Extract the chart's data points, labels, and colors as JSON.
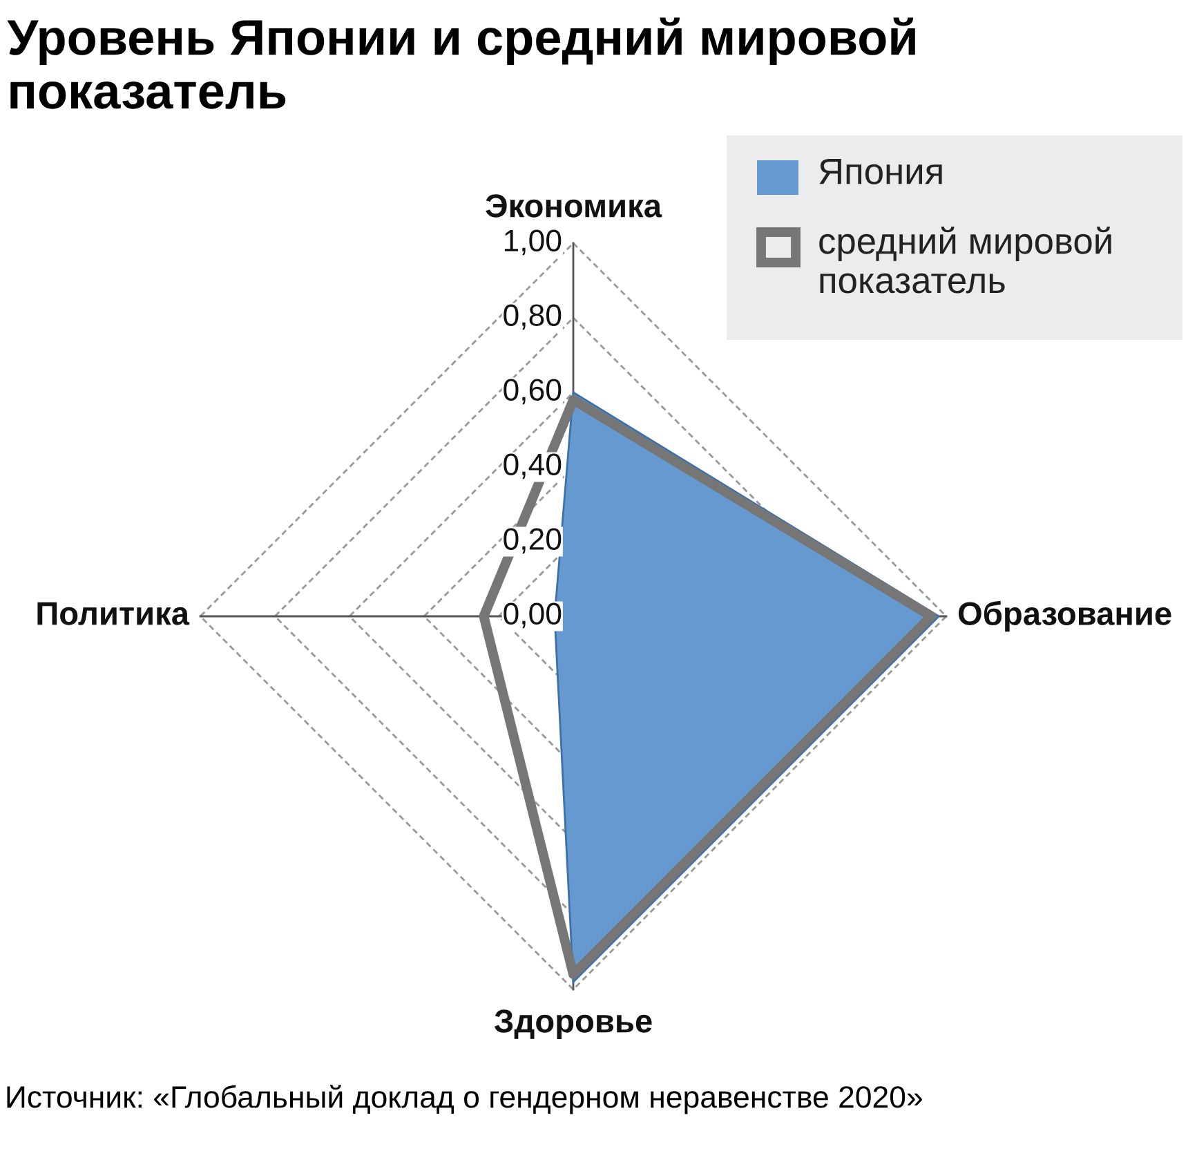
{
  "chart_data": {
    "type": "radar",
    "title": "Уровень Японии и средний мировой показатель",
    "categories": [
      "Экономика",
      "Образование",
      "Здоровье",
      "Политика"
    ],
    "series": [
      {
        "name": "Япония",
        "color": "#6699cf",
        "values": [
          0.6,
          0.98,
          0.98,
          0.05
        ]
      },
      {
        "name": "средний мировой показатель",
        "color": "#767676",
        "values": [
          0.58,
          0.96,
          0.96,
          0.24
        ]
      }
    ],
    "ylim": [
      0,
      1
    ],
    "yticks": [
      {
        "value": 0,
        "label": "0,00"
      },
      {
        "value": 0.2,
        "label": "0,20"
      },
      {
        "value": 0.4,
        "label": "0,40"
      },
      {
        "value": 0.6,
        "label": "0,60"
      },
      {
        "value": 0.8,
        "label": "0,80"
      },
      {
        "value": 1,
        "label": "1,00"
      }
    ],
    "grid": true,
    "legend": "top right",
    "annotations": [
      "Источник: «Глобальный доклад о гендерном неравенстве 2020»"
    ]
  }
}
